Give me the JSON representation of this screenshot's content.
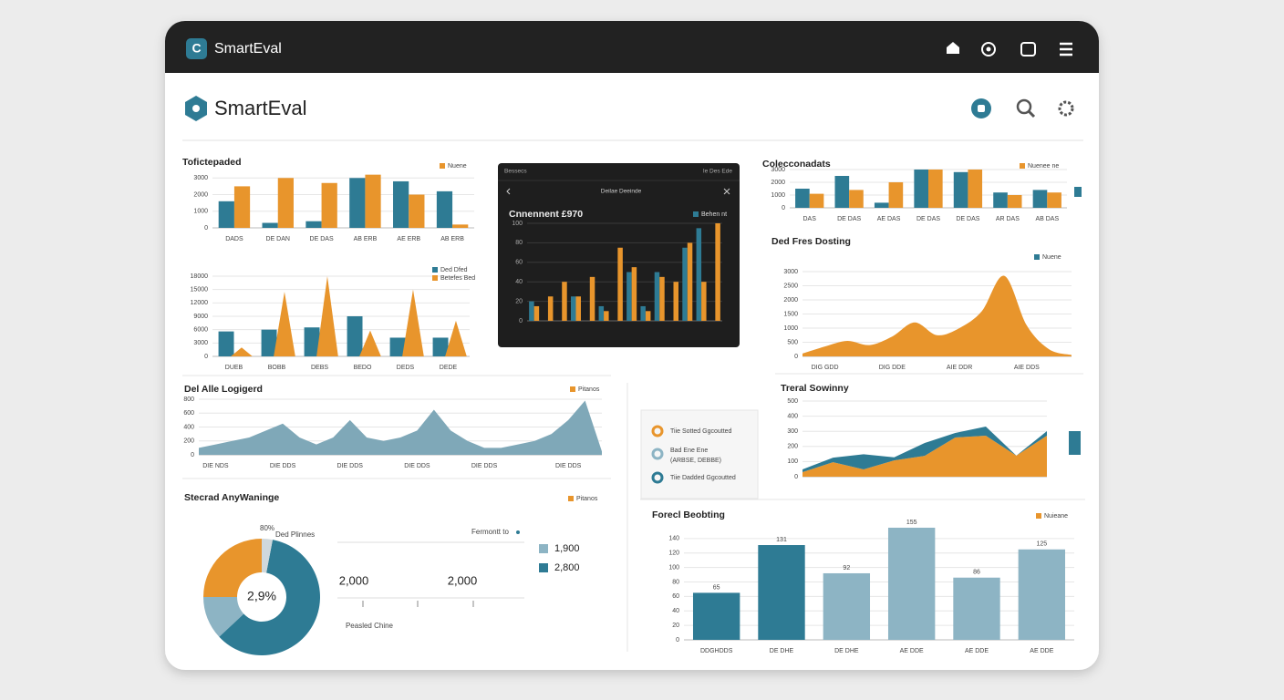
{
  "header": {
    "app_name": "SmartEval",
    "logo_letter": "C",
    "brand": "SmartEval"
  },
  "dark_panel": {
    "left": "Bessecs",
    "right": "Ie Des Ede",
    "subtitle": "Deilae Deeinde"
  },
  "legend_panel": {
    "items": [
      {
        "label": "Tiie Sotted Ggcoutted"
      },
      {
        "label": "Bad Ene Ene",
        "note": "(ARBSE, DEBBE)"
      },
      {
        "label": "Tiie Dadded Ggcoutted"
      }
    ]
  },
  "chart_data": [
    {
      "type": "bar",
      "title": "Tofictepaded",
      "categories": [
        "DADS",
        "DE DAN",
        "DE DAS",
        "AB ERB",
        "AE ERB",
        "AB ERB"
      ],
      "series": [
        {
          "color": "#2e7b94",
          "values": [
            1600,
            300,
            400,
            3000,
            2800,
            2200
          ]
        },
        {
          "name": "Nuene",
          "color": "#e8952c",
          "values": [
            2500,
            3000,
            2700,
            3200,
            2000,
            200
          ]
        }
      ],
      "ylim": [
        0,
        3400
      ],
      "yticks": [
        0,
        1000,
        2000,
        3000
      ],
      "grid": true
    },
    {
      "type": "bar",
      "categories": [
        "DUEB",
        "BOBB",
        "DEBS",
        "BEDO",
        "DEDS",
        "DEDE"
      ],
      "series": [
        {
          "name": "Ded Dfed",
          "color": "#2e7b94",
          "values": [
            5600,
            6000,
            6500,
            9000,
            4200,
            4200
          ]
        },
        {
          "name": "Betefes Bed",
          "color": "#e8952c",
          "shape": "spike",
          "values": [
            2000,
            14500,
            18000,
            5800,
            15000,
            8000
          ]
        }
      ],
      "ylim": [
        0,
        18000
      ],
      "yticks": [
        0,
        3000,
        6000,
        9000,
        12000,
        15000,
        18000
      ],
      "grid": true
    },
    {
      "type": "bar",
      "title": "Cnnennent £970",
      "series": [
        {
          "name": "Behen nt",
          "color": "#2e7b94",
          "values": [
            20,
            null,
            null,
            25,
            null,
            15,
            null,
            50,
            15,
            50,
            null,
            75,
            95,
            null
          ]
        },
        {
          "color": "#e8952c",
          "values": [
            15,
            25,
            40,
            25,
            45,
            10,
            75,
            55,
            10,
            45,
            40,
            80,
            40,
            100
          ]
        }
      ],
      "ylim": [
        0,
        100
      ],
      "yticks": [
        0,
        20,
        40,
        60,
        80,
        100
      ],
      "grid": true
    },
    {
      "type": "bar",
      "title": "Colecconadats",
      "categories": [
        "DAS",
        "DE DAS",
        "AE DAS",
        "DE DAS",
        "DE DAS",
        "AR DAS",
        "AB DAS"
      ],
      "series": [
        {
          "color": "#2e7b94",
          "values": [
            1500,
            2500,
            400,
            3000,
            2800,
            1200,
            1400
          ]
        },
        {
          "name": "Nuenee ne",
          "color": "#e8952c",
          "values": [
            1100,
            1400,
            2000,
            3000,
            3000,
            1000,
            1200
          ]
        }
      ],
      "ylim": [
        0,
        3000
      ],
      "yticks": [
        0,
        1000,
        2000,
        3000
      ],
      "grid": true
    },
    {
      "type": "area",
      "title": "Ded Fres Dosting",
      "smooth": true,
      "legend": [
        {
          "label": "Nuene",
          "color": "#2e7b94"
        }
      ],
      "x": [
        0,
        1,
        2,
        3,
        4,
        5,
        6,
        7,
        8,
        9,
        10,
        11,
        12
      ],
      "series": [
        {
          "color": "#e8952c",
          "values": [
            100,
            350,
            550,
            400,
            700,
            1200,
            750,
            1000,
            1600,
            2850,
            1100,
            250,
            50
          ]
        }
      ],
      "xlim": [
        0,
        12
      ],
      "xticks": [
        {
          "value": 1,
          "label": "DIG GDD"
        },
        {
          "value": 4,
          "label": "DIG DDE"
        },
        {
          "value": 7,
          "label": "AIE DDR"
        },
        {
          "value": 10,
          "label": "AIE DDS"
        }
      ],
      "ylim": [
        0,
        3000
      ],
      "yticks": [
        0,
        500,
        1000,
        1500,
        2000,
        2500,
        3000
      ],
      "grid": true
    },
    {
      "type": "area",
      "title": "Del Alle Logigerd",
      "legend": [
        {
          "label": "Pitanos",
          "color": "#e8952c"
        }
      ],
      "x": [
        0,
        1,
        2,
        3,
        4,
        5,
        6,
        7,
        8,
        9,
        10,
        11,
        12,
        13,
        14,
        15,
        16,
        17,
        18,
        19,
        20,
        21,
        22,
        23,
        24
      ],
      "series": [
        {
          "color": "#7fa8b8",
          "values": [
            100,
            150,
            200,
            250,
            350,
            450,
            250,
            150,
            250,
            500,
            250,
            200,
            250,
            350,
            650,
            350,
            200,
            100,
            100,
            150,
            200,
            300,
            500,
            780,
            50
          ]
        }
      ],
      "xlim": [
        0,
        24
      ],
      "xticks": [
        {
          "value": 1,
          "label": "DIE NDS"
        },
        {
          "value": 5,
          "label": "DIE DDS"
        },
        {
          "value": 9,
          "label": "DIE DDS"
        },
        {
          "value": 13,
          "label": "DIE DDS"
        },
        {
          "value": 17,
          "label": "DIE DDS"
        },
        {
          "value": 22,
          "label": "DIE DDS"
        }
      ],
      "ylim": [
        0,
        800
      ],
      "yticks": [
        0,
        200,
        400,
        600,
        800
      ],
      "grid": true
    },
    {
      "type": "area",
      "title": "Treral Sowinny",
      "x": [
        0,
        1,
        2,
        3,
        4,
        5,
        6,
        7,
        8
      ],
      "series": [
        {
          "color": "#e8952c",
          "values": [
            30,
            96,
            48,
            108,
            138,
            259,
            271,
            139,
            271
          ]
        },
        {
          "color": "#2e7b94",
          "values": [
            18,
            30,
            100,
            20,
            85,
            30,
            60,
            0,
            30
          ]
        }
      ],
      "xlim": [
        0,
        8
      ],
      "ylim": [
        0,
        500
      ],
      "yticks": [
        0,
        100,
        200,
        300,
        400,
        500
      ],
      "grid": true
    },
    {
      "type": "donut",
      "title": "Stecrad AnyWaninge",
      "values": [
        25,
        12,
        60,
        3
      ],
      "colors": [
        "#e8952c",
        "#8db4c4",
        "#2e7b94",
        "#cfd8dc"
      ],
      "center_label": "2,9%",
      "legend": [
        {
          "label": "Pitanos",
          "color": "#e8952c"
        }
      ],
      "side_legend": [
        {
          "label": "1,900",
          "color": "#8db4c4"
        },
        {
          "label": "2,800",
          "color": "#2e7b94"
        }
      ],
      "annotations": [
        "80%",
        "Ded Plinnes",
        "Fermontt to",
        "2,000",
        "2,000",
        "Peasled Chine"
      ]
    },
    {
      "type": "bar",
      "title": "Forecl Beobting",
      "data_labels": true,
      "legend": [
        {
          "label": "Nuieane",
          "color": "#e8952c"
        }
      ],
      "categories": [
        "DDGHDDS",
        "DE DHE",
        "DE DHE",
        "AE DDE",
        "AE DDE",
        "AE DDE"
      ],
      "series": [
        {
          "values": [
            65,
            131,
            92,
            155,
            86,
            125
          ]
        }
      ],
      "colors": [
        "#2e7b94",
        "#2e7b94",
        "#8db4c4",
        "#8db4c4",
        "#8db4c4",
        "#8db4c4"
      ],
      "ylim": [
        0,
        160
      ],
      "yticks": [
        0,
        20,
        40,
        60,
        80,
        100,
        120,
        140
      ],
      "grid": true
    }
  ]
}
